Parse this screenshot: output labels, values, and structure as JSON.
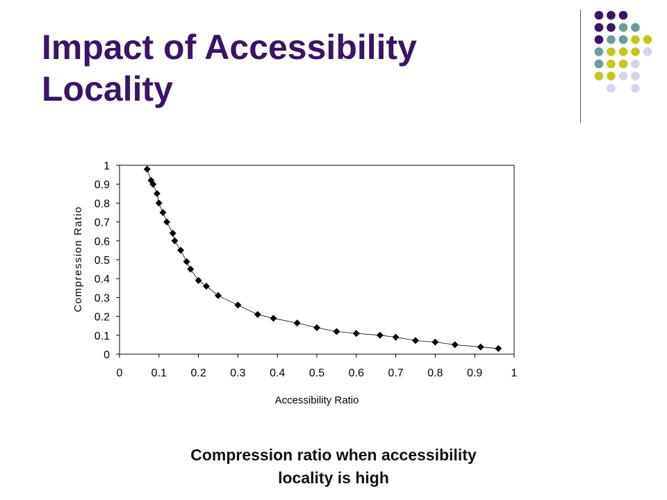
{
  "slide": {
    "title_line1": "Impact of Accessibility",
    "title_line2": "Locality",
    "caption_line1": "Compression ratio when accessibility",
    "caption_line2": "locality is high",
    "title_color": "#3a1466"
  },
  "decoration": {
    "dot_grid_colors": {
      "purple": "#3a1466",
      "teal": "#6b9c9a",
      "olive": "#c5c61c",
      "lavender": "#d5d5e8"
    },
    "dot_grid_rows": [
      [
        "purple",
        "purple",
        "purple",
        null,
        null
      ],
      [
        "purple",
        "purple",
        "teal",
        "teal",
        null
      ],
      [
        "purple",
        "teal",
        "teal",
        "olive",
        "olive"
      ],
      [
        "teal",
        "olive",
        "olive",
        "olive",
        "lavender"
      ],
      [
        "teal",
        "olive",
        "olive",
        "lavender",
        null
      ],
      [
        "olive",
        "olive",
        "lavender",
        "lavender",
        null
      ],
      [
        null,
        "lavender",
        null,
        "lavender",
        null
      ]
    ]
  },
  "chart_data": {
    "type": "scatter",
    "xlabel": "Accessibility Ratio",
    "ylabel": "Compression Ratio",
    "xlim": [
      0,
      1
    ],
    "ylim": [
      0,
      1
    ],
    "x_ticks": [
      "0",
      "0.1",
      "0.2",
      "0.3",
      "0.4",
      "0.5",
      "0.6",
      "0.7",
      "0.8",
      "0.9",
      "1"
    ],
    "y_ticks": [
      "0",
      "0.1",
      "0.2",
      "0.3",
      "0.4",
      "0.5",
      "0.6",
      "0.7",
      "0.8",
      "0.9",
      "1"
    ],
    "grid": false,
    "connected": true,
    "marker": "diamond",
    "marker_color": "#000000",
    "x": [
      0.07,
      0.08,
      0.085,
      0.095,
      0.1,
      0.11,
      0.12,
      0.135,
      0.14,
      0.155,
      0.17,
      0.18,
      0.2,
      0.22,
      0.25,
      0.3,
      0.35,
      0.39,
      0.45,
      0.5,
      0.55,
      0.6,
      0.66,
      0.7,
      0.75,
      0.8,
      0.85,
      0.915,
      0.96
    ],
    "y": [
      0.98,
      0.92,
      0.9,
      0.85,
      0.8,
      0.75,
      0.7,
      0.64,
      0.6,
      0.55,
      0.49,
      0.45,
      0.39,
      0.36,
      0.31,
      0.26,
      0.21,
      0.19,
      0.165,
      0.14,
      0.12,
      0.11,
      0.1,
      0.09,
      0.072,
      0.064,
      0.05,
      0.038,
      0.03
    ]
  }
}
